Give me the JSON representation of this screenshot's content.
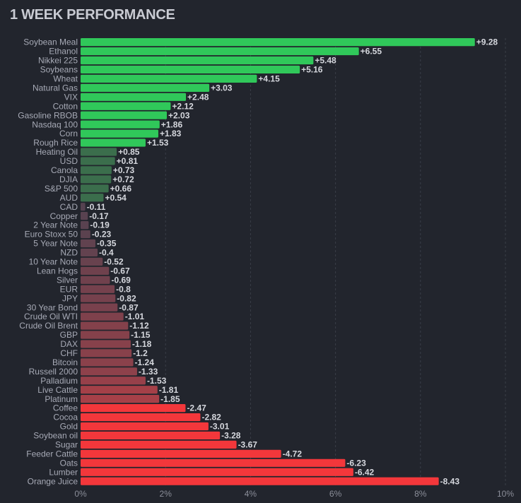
{
  "title": "1 WEEK PERFORMANCE",
  "chart_data": {
    "type": "bar",
    "orientation": "horizontal",
    "title": "1 WEEK PERFORMANCE",
    "xlabel": "",
    "ylabel": "",
    "xlim": [
      0,
      10
    ],
    "xticks": [
      "0%",
      "2%",
      "4%",
      "6%",
      "8%",
      "10%"
    ],
    "grid": true,
    "categories": [
      "Soybean Meal",
      "Ethanol",
      "Nikkei 225",
      "Soybeans",
      "Wheat",
      "Natural Gas",
      "VIX",
      "Cotton",
      "Gasoline RBOB",
      "Nasdaq 100",
      "Corn",
      "Rough Rice",
      "Heating Oil",
      "USD",
      "Canola",
      "DJIA",
      "S&P 500",
      "AUD",
      "CAD",
      "Copper",
      "2 Year Note",
      "Euro Stoxx 50",
      "5 Year Note",
      "NZD",
      "10 Year Note",
      "Lean Hogs",
      "Silver",
      "EUR",
      "JPY",
      "30 Year Bond",
      "Crude Oil WTI",
      "Crude Oil Brent",
      "GBP",
      "DAX",
      "CHF",
      "Bitcoin",
      "Russell 2000",
      "Palladium",
      "Live Cattle",
      "Platinum",
      "Coffee",
      "Cocoa",
      "Gold",
      "Soybean oil",
      "Sugar",
      "Feeder Cattle",
      "Oats",
      "Lumber",
      "Orange Juice"
    ],
    "values": [
      9.28,
      6.55,
      5.48,
      5.16,
      4.15,
      3.03,
      2.48,
      2.12,
      2.03,
      1.86,
      1.83,
      1.53,
      0.85,
      0.81,
      0.73,
      0.72,
      0.66,
      0.54,
      -0.11,
      -0.17,
      -0.19,
      -0.23,
      -0.35,
      -0.4,
      -0.52,
      -0.67,
      -0.69,
      -0.8,
      -0.82,
      -0.87,
      -1.01,
      -1.12,
      -1.15,
      -1.18,
      -1.2,
      -1.24,
      -1.33,
      -1.53,
      -1.81,
      -1.85,
      -2.47,
      -2.82,
      -3.01,
      -3.28,
      -3.67,
      -4.72,
      -6.23,
      -6.42,
      -8.43
    ],
    "value_labels": [
      "+9.28",
      "+6.55",
      "+5.48",
      "+5.16",
      "+4.15",
      "+3.03",
      "+2.48",
      "+2.12",
      "+2.03",
      "+1.86",
      "+1.83",
      "+1.53",
      "+0.85",
      "+0.81",
      "+0.73",
      "+0.72",
      "+0.66",
      "+0.54",
      "-0.11",
      "-0.17",
      "-0.19",
      "-0.23",
      "-0.35",
      "-0.4",
      "-0.52",
      "-0.67",
      "-0.69",
      "-0.8",
      "-0.82",
      "-0.87",
      "-1.01",
      "-1.12",
      "-1.15",
      "-1.18",
      "-1.2",
      "-1.24",
      "-1.33",
      "-1.53",
      "-1.81",
      "-1.85",
      "-2.47",
      "-2.82",
      "-3.01",
      "-3.28",
      "-3.67",
      "-4.72",
      "-6.23",
      "-6.42",
      "-8.43"
    ],
    "colors": {
      "pos_strong": "#30c85a",
      "pos_weak": "#3b6e4c",
      "neg_weak": "#5a4450",
      "neg_mid": "#a8434b",
      "neg_strong": "#f3373b",
      "grid": "#3a3e48"
    }
  }
}
